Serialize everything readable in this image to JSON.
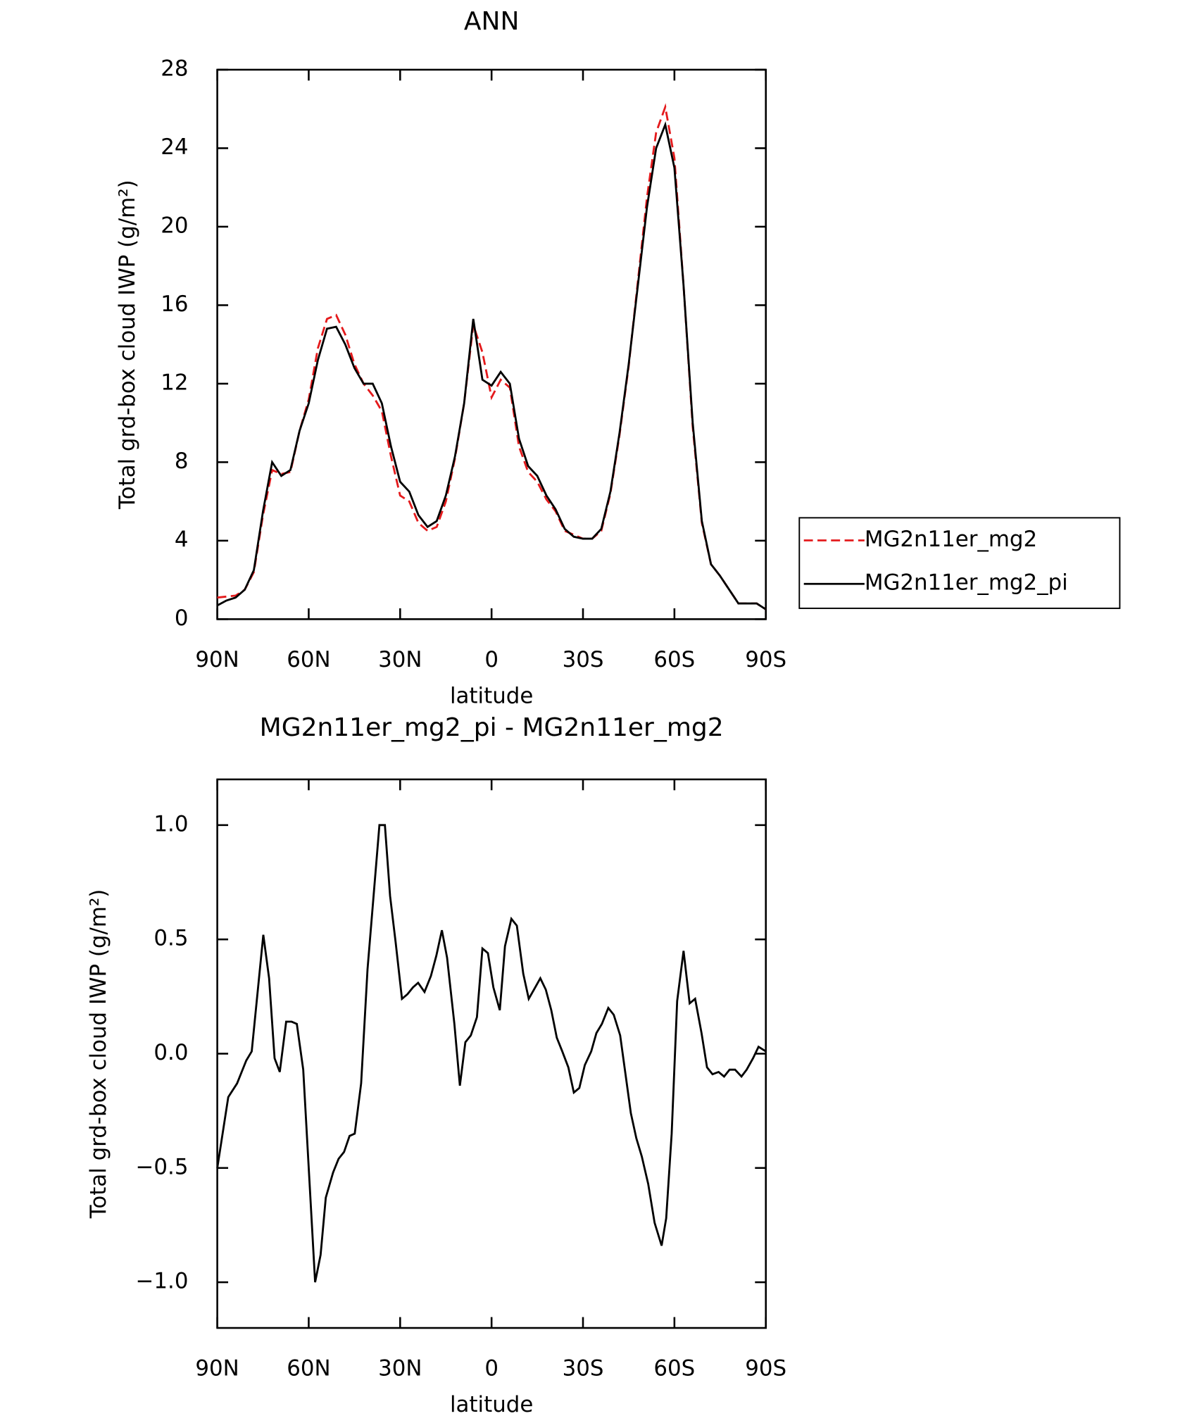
{
  "chart_data": [
    {
      "type": "line",
      "title": "ANN",
      "xlabel": "latitude",
      "ylabel": "Total grd-box cloud IWP (g/m²)",
      "x": [
        90,
        87,
        84,
        81,
        78,
        75,
        72,
        69,
        66,
        63,
        60,
        57,
        54,
        51,
        48,
        45,
        42,
        39,
        36,
        33,
        30,
        27,
        24,
        21,
        18,
        15,
        12,
        9,
        6,
        3,
        0,
        -3,
        -6,
        -9,
        -12,
        -15,
        -18,
        -21,
        -24,
        -27,
        -30,
        -33,
        -36,
        -39,
        -42,
        -45,
        -48,
        -51,
        -54,
        -57,
        -60,
        -63,
        -66,
        -69,
        -72,
        -75,
        -78,
        -81,
        -84,
        -87,
        -90
      ],
      "series": [
        {
          "name": "MG2n11er_mg2",
          "color": "#e41a1c",
          "dash": true,
          "values": [
            1.1,
            1.15,
            1.2,
            1.5,
            2.4,
            5.3,
            7.6,
            7.4,
            7.5,
            9.6,
            11.2,
            13.8,
            15.3,
            15.5,
            14.5,
            13.0,
            12.0,
            11.4,
            10.6,
            8.3,
            6.3,
            6.0,
            4.9,
            4.5,
            4.7,
            6.0,
            8.2,
            11.0,
            15.0,
            13.6,
            11.3,
            12.2,
            11.8,
            8.8,
            7.5,
            7.0,
            6.1,
            5.5,
            4.5,
            4.3,
            4.1,
            4.1,
            4.5,
            6.4,
            9.4,
            12.9,
            17.2,
            21.5,
            24.8,
            26.1,
            23.5,
            17.0,
            9.8,
            4.9,
            2.8,
            2.2,
            1.5,
            0.8,
            0.8,
            0.8,
            0.5
          ]
        },
        {
          "name": "MG2n11er_mg2_pi",
          "color": "#000000",
          "dash": false,
          "values": [
            0.7,
            0.95,
            1.1,
            1.5,
            2.5,
            5.5,
            8.0,
            7.3,
            7.6,
            9.6,
            11.0,
            13.2,
            14.8,
            14.9,
            14.0,
            12.8,
            12.0,
            12.0,
            11.0,
            8.8,
            7.0,
            6.5,
            5.3,
            4.7,
            5.0,
            6.3,
            8.3,
            11.0,
            15.3,
            12.2,
            11.9,
            12.6,
            12.0,
            9.2,
            7.8,
            7.3,
            6.3,
            5.6,
            4.6,
            4.2,
            4.1,
            4.1,
            4.6,
            6.5,
            9.5,
            13.0,
            17.0,
            21.0,
            24.0,
            25.2,
            23.0,
            17.0,
            10.0,
            5.0,
            2.8,
            2.2,
            1.5,
            0.8,
            0.8,
            0.8,
            0.5
          ]
        }
      ],
      "xlim": [
        90,
        -90
      ],
      "xticks": [
        {
          "value": 90,
          "label": "90N"
        },
        {
          "value": 60,
          "label": "60N"
        },
        {
          "value": 30,
          "label": "30N"
        },
        0,
        {
          "value": -30,
          "label": "30S"
        },
        {
          "value": -60,
          "label": "60S"
        },
        {
          "value": -90,
          "label": "90S"
        }
      ],
      "ylim": [
        0,
        28
      ],
      "yticks": [
        0,
        4,
        8,
        12,
        16,
        20,
        24,
        28
      ],
      "legend": "right"
    },
    {
      "type": "line",
      "title": "MG2n11er_mg2_pi - MG2n11er_mg2",
      "xlabel": "latitude",
      "ylabel": "Total grd-box cloud IWP (g/m²)",
      "color": "#000000",
      "x": [
        90,
        86.4,
        83.5,
        80.5,
        78.7,
        74.9,
        73,
        71.2,
        69.5,
        67.4,
        65.6,
        63.9,
        61.8,
        57.9,
        56.1,
        54.4,
        52,
        50.2,
        48.4,
        46.6,
        44.9,
        42.8,
        40.7,
        36.8,
        35,
        33.3,
        31.5,
        29.4,
        27.6,
        25.8,
        24.1,
        22,
        19.9,
        18.1,
        16.3,
        14.6,
        12.2,
        10.4,
        8.6,
        6.8,
        4.8,
        3,
        1.2,
        -0.6,
        -2.7,
        -4.4,
        -6.5,
        -8.3,
        -10.4,
        -12.2,
        -13.9,
        -16,
        -17.8,
        -19.6,
        -21.4,
        -23.2,
        -25.2,
        -27,
        -28.8,
        -30.6,
        -32.7,
        -34.4,
        -36.2,
        -38.3,
        -40.1,
        -42.2,
        -45.7,
        -47.5,
        -49.3,
        -51.4,
        -53.5,
        -55.8,
        -57.3,
        -59.1,
        -60.9,
        -63,
        -65,
        -66.8,
        -68.9,
        -70.7,
        -72.5,
        -74.5,
        -76.3,
        -78.1,
        -79.9,
        -82,
        -83.7,
        -85.8,
        -87.6,
        -90
      ],
      "values": [
        -0.5,
        -0.19,
        -0.13,
        -0.03,
        0.01,
        0.52,
        0.33,
        -0.02,
        -0.08,
        0.14,
        0.14,
        0.13,
        -0.07,
        -1.0,
        -0.88,
        -0.63,
        -0.52,
        -0.46,
        -0.43,
        -0.36,
        -0.35,
        -0.13,
        0.37,
        1.0,
        1.0,
        0.69,
        0.49,
        0.24,
        0.26,
        0.29,
        0.31,
        0.27,
        0.34,
        0.43,
        0.54,
        0.42,
        0.13,
        -0.14,
        0.05,
        0.08,
        0.16,
        0.46,
        0.44,
        0.29,
        0.19,
        0.47,
        0.59,
        0.56,
        0.35,
        0.24,
        0.28,
        0.33,
        0.28,
        0.19,
        0.07,
        0.01,
        -0.06,
        -0.17,
        -0.15,
        -0.05,
        0.01,
        0.09,
        0.13,
        0.2,
        0.17,
        0.08,
        -0.26,
        -0.37,
        -0.45,
        -0.57,
        -0.74,
        -0.84,
        -0.72,
        -0.35,
        0.23,
        0.45,
        0.22,
        0.24,
        0.09,
        -0.06,
        -0.09,
        -0.08,
        -0.1,
        -0.07,
        -0.07,
        -0.1,
        -0.07,
        -0.02,
        0.03,
        0.01
      ],
      "xlim": [
        90,
        -90
      ],
      "xticks": [
        {
          "value": 90,
          "label": "90N"
        },
        {
          "value": 60,
          "label": "60N"
        },
        {
          "value": 30,
          "label": "30N"
        },
        0,
        {
          "value": -30,
          "label": "30S"
        },
        {
          "value": -60,
          "label": "60S"
        },
        {
          "value": -90,
          "label": "90S"
        }
      ],
      "ylim": [
        -1.2,
        1.2
      ],
      "yticks": [
        {
          "value": -1.0,
          "label": "−1.0"
        },
        {
          "value": -0.5,
          "label": "−0.5"
        },
        {
          "value": 0.0,
          "label": "0.0"
        },
        {
          "value": 0.5,
          "label": "0.5"
        },
        {
          "value": 1.0,
          "label": "1.0"
        }
      ]
    }
  ]
}
